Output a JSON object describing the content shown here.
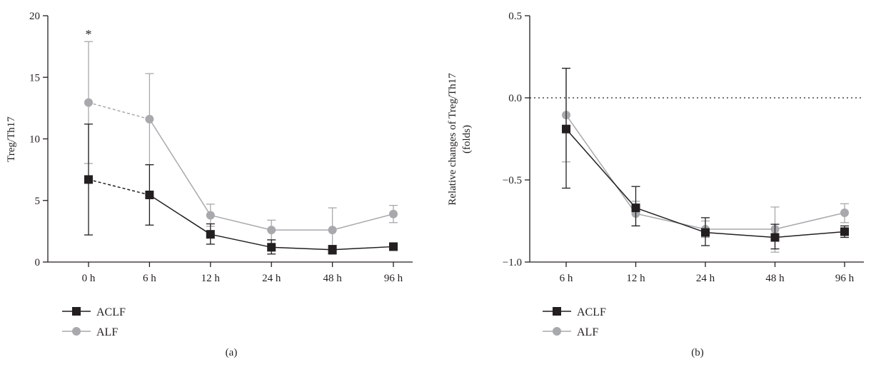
{
  "colors": {
    "ACLF": "#231f20",
    "ALF": "#a7a9ac",
    "axis": "#231f20"
  },
  "chart_data": [
    {
      "type": "line",
      "panel_label": "(a)",
      "categories": [
        "0 h",
        "6 h",
        "12 h",
        "24 h",
        "48 h",
        "96 h"
      ],
      "ylabel": "Treg/Th17",
      "ylim": [
        0,
        20
      ],
      "yticks": [
        0,
        5,
        10,
        15,
        20
      ],
      "ytick_labels": [
        "0",
        "5",
        "10",
        "15",
        "20"
      ],
      "annotations": [
        {
          "text": "*",
          "category": "0 h"
        }
      ],
      "legend_position": "bottom-left",
      "grid": false,
      "series": [
        {
          "name": "ACLF",
          "marker": "square",
          "color": "#231f20",
          "values": [
            6.7,
            5.45,
            2.25,
            1.2,
            1.0,
            1.25
          ],
          "err_upper": [
            11.2,
            7.9,
            3.1,
            1.8,
            1.35,
            1.35
          ],
          "err_lower": [
            2.2,
            3.0,
            1.45,
            0.65,
            0.65,
            1.15
          ],
          "dashed_segments": [
            [
              0,
              1
            ]
          ]
        },
        {
          "name": "ALF",
          "marker": "circle",
          "color": "#a7a9ac",
          "values": [
            12.95,
            11.6,
            3.8,
            2.6,
            2.6,
            3.9
          ],
          "err_upper": [
            17.9,
            15.3,
            4.7,
            3.4,
            4.4,
            4.6
          ],
          "err_lower": [
            8.0,
            7.9,
            2.9,
            1.8,
            0.8,
            3.2
          ],
          "dashed_segments": [
            [
              0,
              1
            ]
          ]
        }
      ]
    },
    {
      "type": "line",
      "panel_label": "(b)",
      "categories": [
        "6 h",
        "12 h",
        "24 h",
        "48 h",
        "96 h"
      ],
      "ylabel_lines": [
        "Relative changes of Treg/Th17",
        "(folds)"
      ],
      "ylim": [
        -1.0,
        0.5
      ],
      "yticks": [
        -1.0,
        -0.5,
        0.0,
        0.5
      ],
      "ytick_labels": [
        "−1.0",
        "−0.5",
        "0.0",
        "0.5"
      ],
      "reference_line": {
        "y": 0.0,
        "style": "dotted"
      },
      "legend_position": "bottom-left",
      "grid": false,
      "series": [
        {
          "name": "ACLF",
          "marker": "square",
          "color": "#231f20",
          "values": [
            -0.19,
            -0.67,
            -0.82,
            -0.85,
            -0.815
          ],
          "err_upper": [
            0.18,
            -0.54,
            -0.73,
            -0.77,
            -0.78
          ],
          "err_lower": [
            -0.55,
            -0.78,
            -0.9,
            -0.92,
            -0.85
          ],
          "dashed_segments": []
        },
        {
          "name": "ALF",
          "marker": "circle",
          "color": "#a7a9ac",
          "values": [
            -0.105,
            -0.705,
            -0.8,
            -0.8,
            -0.7
          ],
          "err_upper": [
            0.18,
            -0.63,
            -0.75,
            -0.665,
            -0.645
          ],
          "err_lower": [
            -0.39,
            -0.78,
            -0.85,
            -0.94,
            -0.76
          ],
          "dashed_segments": []
        }
      ]
    }
  ]
}
